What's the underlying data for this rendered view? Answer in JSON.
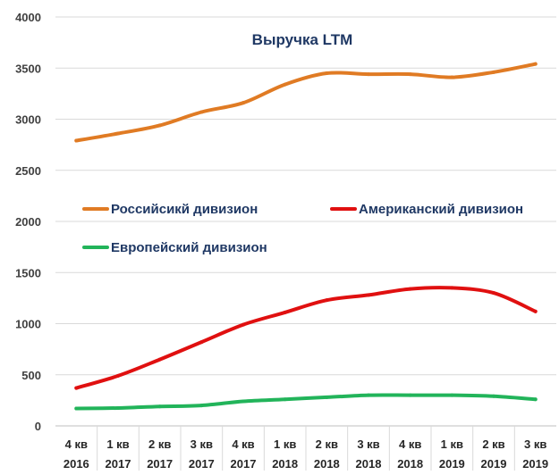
{
  "chart_data": {
    "type": "line",
    "title": "Выручка LTM",
    "categories": [
      [
        "4 кв",
        "2016"
      ],
      [
        "1 кв",
        "2017"
      ],
      [
        "2 кв",
        "2017"
      ],
      [
        "3 кв",
        "2017"
      ],
      [
        "4 кв",
        "2017"
      ],
      [
        "1 кв",
        "2018"
      ],
      [
        "2 кв",
        "2018"
      ],
      [
        "3 кв",
        "2018"
      ],
      [
        "4 кв",
        "2018"
      ],
      [
        "1 кв",
        "2019"
      ],
      [
        "2 кв",
        "2019"
      ],
      [
        "3 кв",
        "2019"
      ]
    ],
    "ylim": [
      0,
      4000
    ],
    "yticks": [
      0,
      500,
      1000,
      1500,
      2000,
      2500,
      3000,
      3500,
      4000
    ],
    "grid": true,
    "series": [
      {
        "name": "Российсикй дивизион",
        "color": "#e07b24",
        "values": [
          2790,
          2860,
          2940,
          3070,
          3160,
          3340,
          3450,
          3440,
          3440,
          3410,
          3460,
          3540
        ]
      },
      {
        "name": "Американский дивизион",
        "color": "#e01010",
        "values": [
          370,
          490,
          650,
          820,
          990,
          1110,
          1230,
          1280,
          1340,
          1350,
          1300,
          1120
        ]
      },
      {
        "name": "Европейский дивизион",
        "color": "#22b45a",
        "values": [
          170,
          175,
          190,
          200,
          240,
          260,
          280,
          300,
          300,
          300,
          290,
          260
        ]
      }
    ]
  }
}
